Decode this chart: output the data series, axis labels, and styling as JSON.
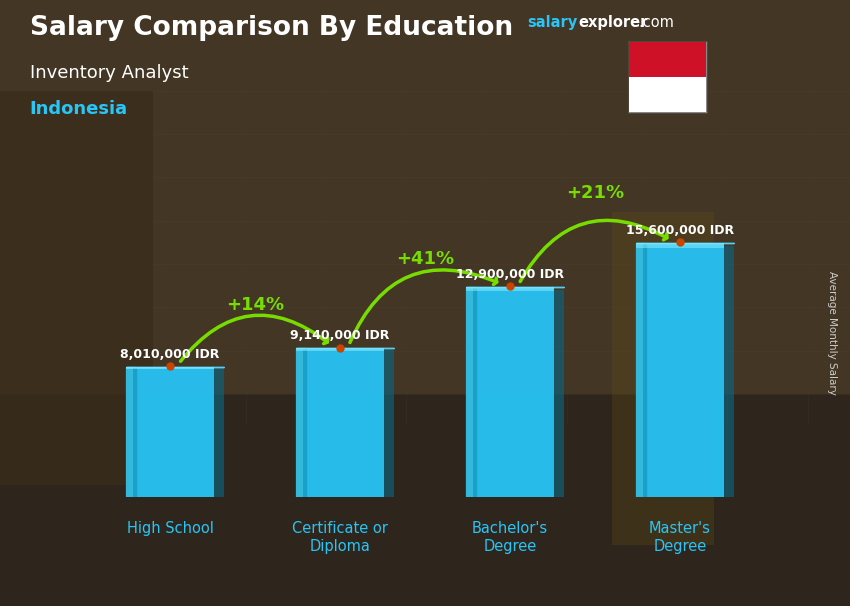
{
  "title_salary": "Salary Comparison By Education",
  "subtitle": "Inventory Analyst",
  "country": "Indonesia",
  "ylabel": "Average Monthly Salary",
  "categories": [
    "High School",
    "Certificate or\nDiploma",
    "Bachelor's\nDegree",
    "Master's\nDegree"
  ],
  "values": [
    8010000,
    9140000,
    12900000,
    15600000
  ],
  "value_labels": [
    "8,010,000 IDR",
    "9,140,000 IDR",
    "12,900,000 IDR",
    "15,600,000 IDR"
  ],
  "pct_labels": [
    "+14%",
    "+41%",
    "+21%"
  ],
  "bar_color_main": "#29c5f6",
  "bar_color_left": "#1a9ec8",
  "bar_color_right": "#1ab8e0",
  "bar_color_top": "#55d8ff",
  "cat_label_color": "#29c5f6",
  "value_label_color": "#ffffff",
  "pct_color": "#77dd00",
  "arrow_color": "#77dd00",
  "title_color": "#ffffff",
  "subtitle_color": "#ffffff",
  "country_color": "#29c5f6",
  "watermark_salary_color": "#29c5f6",
  "bg_color": "#5a4a35",
  "ylabel_color": "#cccccc"
}
